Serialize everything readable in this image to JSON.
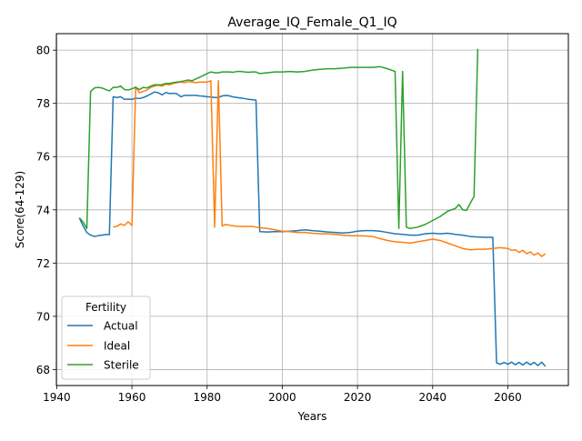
{
  "chart_data": {
    "type": "line",
    "title": "Average_IQ_Female_Q1_IQ",
    "xlabel": "Years",
    "ylabel": "Score(64-129)",
    "xlim": [
      1939.9,
      2076.1
    ],
    "ylim": [
      67.4,
      80.62
    ],
    "x_ticks": [
      1940,
      1960,
      1980,
      2000,
      2020,
      2040,
      2060
    ],
    "y_ticks": [
      68,
      70,
      72,
      74,
      76,
      78,
      80
    ],
    "grid": true,
    "legend": {
      "title": "Fertility",
      "position": "lower-left"
    },
    "series": [
      {
        "name": "Actual",
        "color": "#1f77b4",
        "points": [
          [
            1946,
            73.7
          ],
          [
            1947,
            73.4
          ],
          [
            1948,
            73.15
          ],
          [
            1949,
            73.05
          ],
          [
            1950,
            73.0
          ],
          [
            1951,
            73.03
          ],
          [
            1952,
            73.05
          ],
          [
            1953,
            73.07
          ],
          [
            1954,
            73.07
          ],
          [
            1955,
            78.25
          ],
          [
            1956,
            78.22
          ],
          [
            1957,
            78.25
          ],
          [
            1958,
            78.15
          ],
          [
            1959,
            78.16
          ],
          [
            1960,
            78.15
          ],
          [
            1961,
            78.2
          ],
          [
            1962,
            78.18
          ],
          [
            1963,
            78.22
          ],
          [
            1964,
            78.28
          ],
          [
            1965,
            78.35
          ],
          [
            1966,
            78.43
          ],
          [
            1967,
            78.4
          ],
          [
            1968,
            78.32
          ],
          [
            1969,
            78.41
          ],
          [
            1970,
            78.37
          ],
          [
            1971,
            78.38
          ],
          [
            1972,
            78.36
          ],
          [
            1973,
            78.25
          ],
          [
            1974,
            78.3
          ],
          [
            1975,
            78.3
          ],
          [
            1976,
            78.3
          ],
          [
            1977,
            78.3
          ],
          [
            1978,
            78.28
          ],
          [
            1979,
            78.27
          ],
          [
            1980,
            78.25
          ],
          [
            1981,
            78.24
          ],
          [
            1982,
            78.22
          ],
          [
            1983,
            78.22
          ],
          [
            1984,
            78.28
          ],
          [
            1985,
            78.3
          ],
          [
            1986,
            78.28
          ],
          [
            1987,
            78.24
          ],
          [
            1988,
            78.22
          ],
          [
            1989,
            78.2
          ],
          [
            1990,
            78.18
          ],
          [
            1991,
            78.15
          ],
          [
            1992,
            78.14
          ],
          [
            1993,
            78.12
          ],
          [
            1994,
            73.18
          ],
          [
            1996,
            73.17
          ],
          [
            1998,
            73.18
          ],
          [
            2000,
            73.18
          ],
          [
            2002,
            73.2
          ],
          [
            2004,
            73.22
          ],
          [
            2006,
            73.25
          ],
          [
            2008,
            73.22
          ],
          [
            2010,
            73.2
          ],
          [
            2012,
            73.17
          ],
          [
            2014,
            73.15
          ],
          [
            2016,
            73.13
          ],
          [
            2018,
            73.15
          ],
          [
            2020,
            73.2
          ],
          [
            2022,
            73.22
          ],
          [
            2024,
            73.22
          ],
          [
            2026,
            73.2
          ],
          [
            2028,
            73.15
          ],
          [
            2030,
            73.1
          ],
          [
            2032,
            73.08
          ],
          [
            2034,
            73.05
          ],
          [
            2036,
            73.05
          ],
          [
            2038,
            73.1
          ],
          [
            2040,
            73.12
          ],
          [
            2042,
            73.1
          ],
          [
            2044,
            73.12
          ],
          [
            2046,
            73.08
          ],
          [
            2048,
            73.05
          ],
          [
            2050,
            73.0
          ],
          [
            2052,
            72.98
          ],
          [
            2054,
            72.97
          ],
          [
            2056,
            72.97
          ],
          [
            2057,
            68.25
          ],
          [
            2058,
            68.2
          ],
          [
            2059,
            68.27
          ],
          [
            2060,
            68.2
          ],
          [
            2061,
            68.28
          ],
          [
            2062,
            68.18
          ],
          [
            2063,
            68.27
          ],
          [
            2064,
            68.17
          ],
          [
            2065,
            68.28
          ],
          [
            2066,
            68.18
          ],
          [
            2067,
            68.27
          ],
          [
            2068,
            68.15
          ],
          [
            2069,
            68.28
          ],
          [
            2070,
            68.12
          ]
        ]
      },
      {
        "name": "Ideal",
        "color": "#ff7f0e",
        "points": [
          [
            1955,
            73.35
          ],
          [
            1956,
            73.38
          ],
          [
            1957,
            73.47
          ],
          [
            1958,
            73.42
          ],
          [
            1959,
            73.55
          ],
          [
            1960,
            73.42
          ],
          [
            1961,
            78.62
          ],
          [
            1962,
            78.4
          ],
          [
            1963,
            78.45
          ],
          [
            1964,
            78.5
          ],
          [
            1965,
            78.6
          ],
          [
            1966,
            78.65
          ],
          [
            1967,
            78.68
          ],
          [
            1968,
            78.65
          ],
          [
            1969,
            78.72
          ],
          [
            1970,
            78.7
          ],
          [
            1971,
            78.75
          ],
          [
            1972,
            78.78
          ],
          [
            1973,
            78.8
          ],
          [
            1974,
            78.78
          ],
          [
            1975,
            78.82
          ],
          [
            1976,
            78.8
          ],
          [
            1977,
            78.78
          ],
          [
            1978,
            78.8
          ],
          [
            1979,
            78.8
          ],
          [
            1980,
            78.8
          ],
          [
            1981,
            78.85
          ],
          [
            1982,
            73.35
          ],
          [
            1983,
            78.85
          ],
          [
            1984,
            73.4
          ],
          [
            1985,
            73.45
          ],
          [
            1986,
            73.42
          ],
          [
            1987,
            73.4
          ],
          [
            1988,
            73.38
          ],
          [
            1989,
            73.38
          ],
          [
            1990,
            73.38
          ],
          [
            1991,
            73.38
          ],
          [
            1992,
            73.38
          ],
          [
            1993,
            73.35
          ],
          [
            1994,
            73.33
          ],
          [
            1996,
            73.3
          ],
          [
            1998,
            73.25
          ],
          [
            2000,
            73.2
          ],
          [
            2002,
            73.18
          ],
          [
            2004,
            73.15
          ],
          [
            2006,
            73.15
          ],
          [
            2008,
            73.12
          ],
          [
            2010,
            73.1
          ],
          [
            2012,
            73.1
          ],
          [
            2014,
            73.08
          ],
          [
            2016,
            73.05
          ],
          [
            2018,
            73.03
          ],
          [
            2020,
            73.03
          ],
          [
            2022,
            73.02
          ],
          [
            2024,
            73.0
          ],
          [
            2026,
            72.92
          ],
          [
            2028,
            72.85
          ],
          [
            2030,
            72.8
          ],
          [
            2032,
            72.78
          ],
          [
            2034,
            72.75
          ],
          [
            2036,
            72.8
          ],
          [
            2038,
            72.85
          ],
          [
            2040,
            72.9
          ],
          [
            2042,
            72.85
          ],
          [
            2044,
            72.75
          ],
          [
            2046,
            72.65
          ],
          [
            2048,
            72.55
          ],
          [
            2050,
            72.5
          ],
          [
            2052,
            72.52
          ],
          [
            2054,
            72.52
          ],
          [
            2056,
            72.55
          ],
          [
            2058,
            72.58
          ],
          [
            2060,
            72.55
          ],
          [
            2061,
            72.48
          ],
          [
            2062,
            72.5
          ],
          [
            2063,
            72.4
          ],
          [
            2064,
            72.48
          ],
          [
            2065,
            72.35
          ],
          [
            2066,
            72.42
          ],
          [
            2067,
            72.3
          ],
          [
            2068,
            72.38
          ],
          [
            2069,
            72.25
          ],
          [
            2070,
            72.35
          ]
        ]
      },
      {
        "name": "Sterile",
        "color": "#2ca02c",
        "points": [
          [
            1946,
            73.7
          ],
          [
            1947,
            73.55
          ],
          [
            1948,
            73.3
          ],
          [
            1949,
            78.45
          ],
          [
            1950,
            78.58
          ],
          [
            1951,
            78.6
          ],
          [
            1952,
            78.58
          ],
          [
            1953,
            78.52
          ],
          [
            1954,
            78.47
          ],
          [
            1955,
            78.6
          ],
          [
            1956,
            78.6
          ],
          [
            1957,
            78.65
          ],
          [
            1958,
            78.52
          ],
          [
            1959,
            78.5
          ],
          [
            1960,
            78.55
          ],
          [
            1961,
            78.6
          ],
          [
            1962,
            78.52
          ],
          [
            1963,
            78.6
          ],
          [
            1964,
            78.58
          ],
          [
            1965,
            78.65
          ],
          [
            1966,
            78.7
          ],
          [
            1967,
            78.7
          ],
          [
            1968,
            78.7
          ],
          [
            1969,
            78.75
          ],
          [
            1970,
            78.75
          ],
          [
            1971,
            78.78
          ],
          [
            1972,
            78.8
          ],
          [
            1973,
            78.82
          ],
          [
            1974,
            78.85
          ],
          [
            1975,
            78.88
          ],
          [
            1976,
            78.85
          ],
          [
            1977,
            78.92
          ],
          [
            1978,
            78.98
          ],
          [
            1979,
            79.05
          ],
          [
            1980,
            79.12
          ],
          [
            1981,
            79.18
          ],
          [
            1982,
            79.15
          ],
          [
            1983,
            79.15
          ],
          [
            1984,
            79.18
          ],
          [
            1985,
            79.18
          ],
          [
            1986,
            79.18
          ],
          [
            1987,
            79.17
          ],
          [
            1988,
            79.2
          ],
          [
            1989,
            79.2
          ],
          [
            1990,
            79.18
          ],
          [
            1991,
            79.17
          ],
          [
            1992,
            79.18
          ],
          [
            1993,
            79.18
          ],
          [
            1994,
            79.12
          ],
          [
            1996,
            79.15
          ],
          [
            1998,
            79.18
          ],
          [
            2000,
            79.18
          ],
          [
            2002,
            79.2
          ],
          [
            2004,
            79.18
          ],
          [
            2006,
            79.2
          ],
          [
            2008,
            79.25
          ],
          [
            2010,
            79.28
          ],
          [
            2012,
            79.3
          ],
          [
            2014,
            79.3
          ],
          [
            2016,
            79.32
          ],
          [
            2018,
            79.35
          ],
          [
            2020,
            79.35
          ],
          [
            2022,
            79.35
          ],
          [
            2024,
            79.35
          ],
          [
            2026,
            79.38
          ],
          [
            2028,
            79.3
          ],
          [
            2030,
            79.2
          ],
          [
            2031,
            73.3
          ],
          [
            2032,
            79.2
          ],
          [
            2033,
            73.35
          ],
          [
            2034,
            73.3
          ],
          [
            2036,
            73.35
          ],
          [
            2038,
            73.45
          ],
          [
            2040,
            73.6
          ],
          [
            2042,
            73.75
          ],
          [
            2044,
            73.95
          ],
          [
            2046,
            74.05
          ],
          [
            2047,
            74.2
          ],
          [
            2048,
            74.0
          ],
          [
            2049,
            73.98
          ],
          [
            2050,
            74.25
          ],
          [
            2051,
            74.5
          ],
          [
            2052,
            80.05
          ]
        ]
      }
    ]
  }
}
